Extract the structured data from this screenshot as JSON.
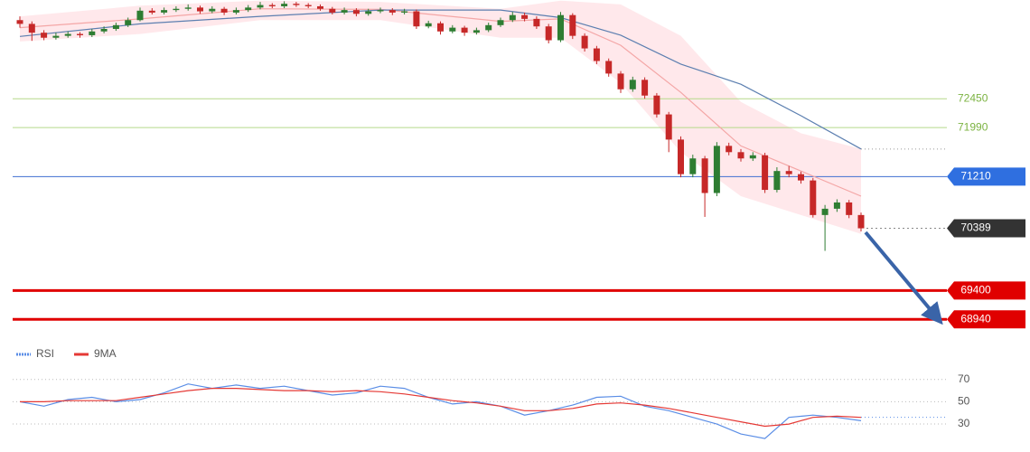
{
  "chart_data": [
    {
      "type": "candlestick",
      "ylim": [
        68700,
        74020
      ],
      "up_color": "#2e7d32",
      "down_color": "#c62828",
      "ohlc": [
        [
          73700,
          73760,
          73580,
          73640
        ],
        [
          73640,
          73680,
          73370,
          73500
        ],
        [
          73500,
          73540,
          73380,
          73420
        ],
        [
          73420,
          73500,
          73390,
          73450
        ],
        [
          73450,
          73520,
          73420,
          73480
        ],
        [
          73480,
          73510,
          73420,
          73460
        ],
        [
          73460,
          73560,
          73430,
          73520
        ],
        [
          73520,
          73600,
          73490,
          73560
        ],
        [
          73560,
          73660,
          73530,
          73620
        ],
        [
          73620,
          73740,
          73590,
          73700
        ],
        [
          73700,
          73900,
          73680,
          73850
        ],
        [
          73850,
          73890,
          73790,
          73820
        ],
        [
          73820,
          73900,
          73790,
          73860
        ],
        [
          73860,
          73920,
          73830,
          73880
        ],
        [
          73880,
          73950,
          73850,
          73900
        ],
        [
          73900,
          73930,
          73800,
          73840
        ],
        [
          73840,
          73920,
          73810,
          73880
        ],
        [
          73880,
          73910,
          73780,
          73820
        ],
        [
          73820,
          73900,
          73790,
          73860
        ],
        [
          73860,
          73940,
          73830,
          73900
        ],
        [
          73900,
          73990,
          73870,
          73940
        ],
        [
          73940,
          73970,
          73890,
          73920
        ],
        [
          73920,
          74000,
          73890,
          73960
        ],
        [
          73960,
          73990,
          73910,
          73940
        ],
        [
          73940,
          73970,
          73890,
          73920
        ],
        [
          73920,
          73950,
          73850,
          73880
        ],
        [
          73880,
          73910,
          73790,
          73820
        ],
        [
          73820,
          73900,
          73790,
          73860
        ],
        [
          73860,
          73890,
          73760,
          73800
        ],
        [
          73800,
          73880,
          73770,
          73840
        ],
        [
          73840,
          73900,
          73810,
          73860
        ],
        [
          73860,
          73890,
          73780,
          73820
        ],
        [
          73820,
          73880,
          73790,
          73840
        ],
        [
          73840,
          73870,
          73560,
          73600
        ],
        [
          73600,
          73690,
          73570,
          73650
        ],
        [
          73650,
          73680,
          73470,
          73520
        ],
        [
          73520,
          73620,
          73490,
          73580
        ],
        [
          73580,
          73610,
          73450,
          73500
        ],
        [
          73500,
          73580,
          73470,
          73540
        ],
        [
          73540,
          73660,
          73510,
          73620
        ],
        [
          73620,
          73740,
          73590,
          73700
        ],
        [
          73700,
          73830,
          73670,
          73780
        ],
        [
          73780,
          73820,
          73680,
          73720
        ],
        [
          73720,
          73760,
          73560,
          73600
        ],
        [
          73600,
          73640,
          73330,
          73380
        ],
        [
          73380,
          73830,
          73350,
          73780
        ],
        [
          73780,
          73810,
          73400,
          73450
        ],
        [
          73450,
          73490,
          73200,
          73250
        ],
        [
          73250,
          73290,
          73000,
          73050
        ],
        [
          73050,
          73090,
          72800,
          72850
        ],
        [
          72850,
          72890,
          72540,
          72600
        ],
        [
          72600,
          72800,
          72560,
          72750
        ],
        [
          72750,
          72790,
          72450,
          72500
        ],
        [
          72500,
          72540,
          72150,
          72200
        ],
        [
          72200,
          72240,
          71600,
          71800
        ],
        [
          71800,
          71850,
          71200,
          71250
        ],
        [
          71250,
          71560,
          71200,
          71500
        ],
        [
          71500,
          71540,
          70570,
          70950
        ],
        [
          70950,
          71760,
          70900,
          71700
        ],
        [
          71700,
          71750,
          71550,
          71600
        ],
        [
          71600,
          71650,
          71450,
          71500
        ],
        [
          71500,
          71600,
          71460,
          71550
        ],
        [
          71550,
          71590,
          70950,
          71000
        ],
        [
          71000,
          71360,
          70960,
          71300
        ],
        [
          71300,
          71380,
          71200,
          71250
        ],
        [
          71250,
          71290,
          71100,
          71150
        ],
        [
          71150,
          71190,
          70560,
          70600
        ],
        [
          70600,
          70760,
          70030,
          70700
        ],
        [
          70700,
          70850,
          70650,
          70800
        ],
        [
          70800,
          70840,
          70550,
          70600
        ],
        [
          70600,
          70640,
          70340,
          70389
        ]
      ],
      "band": {
        "color": "#ffcdd2",
        "x": [
          0,
          10,
          20,
          30,
          40,
          45,
          50,
          55,
          60,
          65,
          70
        ],
        "upper": [
          73760,
          73930,
          74010,
          73990,
          73880,
          74010,
          73950,
          73450,
          72400,
          71900,
          71650
        ],
        "lower": [
          73360,
          73480,
          73700,
          73700,
          73420,
          73420,
          72700,
          71600,
          70900,
          70600,
          70300
        ]
      },
      "series": [
        {
          "color": "#f4a6a6",
          "x": [
            0,
            10,
            20,
            30,
            40,
            45,
            50,
            55,
            60,
            65,
            70
          ],
          "values": [
            73580,
            73720,
            73880,
            73870,
            73680,
            73720,
            73300,
            72550,
            71700,
            71300,
            70900
          ]
        },
        {
          "color": "#5c7fb0",
          "x": [
            0,
            10,
            20,
            30,
            40,
            45,
            50,
            55,
            60,
            65,
            70
          ],
          "values": [
            73440,
            73640,
            73760,
            73860,
            73860,
            73740,
            73460,
            73000,
            72680,
            72180,
            71650
          ],
          "extend": true
        }
      ],
      "levels": [
        {
          "value": 72450,
          "color": "#b5d98a",
          "width": 1,
          "box": false,
          "text_color": "#7cb342"
        },
        {
          "value": 71990,
          "color": "#b5d98a",
          "width": 1,
          "box": false,
          "text_color": "#7cb342"
        },
        {
          "value": 71210,
          "color": "#3f6fd0",
          "width": 1,
          "box": true,
          "text_color": "#ffffff",
          "box_color": "#2f6fe0"
        },
        {
          "value": 70389,
          "color": "#888888",
          "width": 1,
          "box": true,
          "dashed": true,
          "text_color": "#ffffff",
          "box_color": "#333333"
        },
        {
          "value": 69400,
          "color": "#e00000",
          "width": 3,
          "box": true,
          "text_color": "#ffffff",
          "box_color": "#e00000"
        },
        {
          "value": 68940,
          "color": "#e00000",
          "width": 3,
          "box": true,
          "text_color": "#ffffff",
          "box_color": "#e00000"
        }
      ]
    },
    {
      "type": "line",
      "ylim": [
        13,
        82
      ],
      "yticks": [
        30,
        50,
        70
      ],
      "grid": true,
      "x": [
        0,
        2,
        4,
        6,
        8,
        10,
        12,
        14,
        16,
        18,
        20,
        22,
        24,
        26,
        28,
        30,
        32,
        34,
        36,
        38,
        40,
        42,
        44,
        46,
        48,
        50,
        52,
        54,
        56,
        58,
        60,
        62,
        64,
        66,
        68,
        70
      ],
      "series": [
        {
          "name": "RSI",
          "color": "#5b8ee6",
          "values": [
            50,
            46,
            52,
            54,
            50,
            52,
            58,
            66,
            62,
            65,
            62,
            64,
            60,
            56,
            58,
            64,
            62,
            54,
            48,
            50,
            46,
            38,
            42,
            47,
            54,
            55,
            46,
            42,
            36,
            30,
            21,
            17,
            36,
            38,
            36,
            33
          ]
        },
        {
          "name": "9MA",
          "color": "#e53935",
          "values": [
            50,
            50,
            51,
            51,
            51,
            54,
            57,
            60,
            62,
            62,
            61,
            60,
            60,
            59,
            60,
            59,
            57,
            54,
            51,
            49,
            46,
            42,
            42,
            44,
            48,
            49,
            47,
            44,
            40,
            36,
            32,
            28,
            30,
            36,
            37,
            36
          ],
          "extend": true
        }
      ]
    }
  ]
}
